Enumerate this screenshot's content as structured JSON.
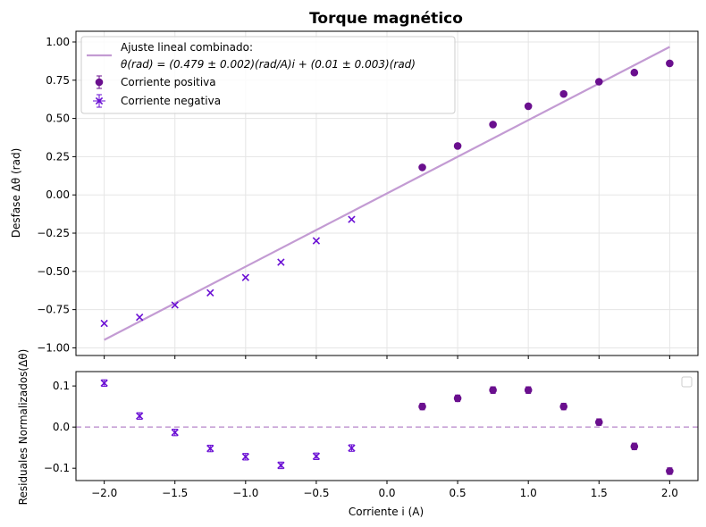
{
  "chart_data": [
    {
      "type": "scatter",
      "title": "Torque magnético",
      "xlabel": "",
      "ylabel": "Desfase Δθ (rad)",
      "xlim": [
        -2.2,
        2.2
      ],
      "ylim": [
        -1.05,
        1.07
      ],
      "xticks": [
        -2.0,
        -1.5,
        -1.0,
        -0.5,
        0.0,
        0.5,
        1.0,
        1.5,
        2.0
      ],
      "yticks": [
        -1.0,
        -0.75,
        -0.5,
        -0.25,
        0.0,
        0.25,
        0.5,
        0.75,
        1.0
      ],
      "xtick_labels": [
        "",
        "",
        "",
        "",
        "",
        "",
        "",
        "",
        ""
      ],
      "ytick_labels": [
        "−1.00",
        "−0.75",
        "−0.50",
        "−0.25",
        "0.00",
        "0.25",
        "0.50",
        "0.75",
        "1.00"
      ],
      "grid": true,
      "legend_position": "top-left",
      "fit_line": {
        "label_line1": "Ajuste lineal combinado:",
        "label_line2": "θ(rad) = (0.479 ± 0.002)(rad/A)i + (0.01 ± 0.003)(rad)",
        "slope": 0.479,
        "intercept": 0.01,
        "x_range": [
          -2.0,
          2.0
        ],
        "color": "#c39bd3"
      },
      "series": [
        {
          "name": "Corriente positiva",
          "marker": "circle",
          "color": "#6a0f8e",
          "x": [
            0.25,
            0.5,
            0.75,
            1.0,
            1.25,
            1.5,
            1.75,
            2.0
          ],
          "y": [
            0.18,
            0.32,
            0.46,
            0.58,
            0.66,
            0.74,
            0.8,
            0.86
          ]
        },
        {
          "name": "Corriente negativa",
          "marker": "x",
          "color": "#6a0fd4",
          "x": [
            -2.0,
            -1.75,
            -1.5,
            -1.25,
            -1.0,
            -0.75,
            -0.5,
            -0.25
          ],
          "y": [
            -0.84,
            -0.8,
            -0.72,
            -0.64,
            -0.54,
            -0.44,
            -0.3,
            -0.16
          ]
        }
      ]
    },
    {
      "type": "scatter",
      "title": "",
      "xlabel": "Corriente i (A)",
      "ylabel": "Residuales Normalizados(Δθ)",
      "xlim": [
        -2.2,
        2.2
      ],
      "ylim": [
        -0.13,
        0.135
      ],
      "xticks": [
        -2.0,
        -1.5,
        -1.0,
        -0.5,
        0.0,
        0.5,
        1.0,
        1.5,
        2.0
      ],
      "yticks": [
        -0.1,
        0.0,
        0.1
      ],
      "xtick_labels": [
        "−2.0",
        "−1.5",
        "−1.0",
        "−0.5",
        "0.0",
        "0.5",
        "1.0",
        "1.5",
        "2.0"
      ],
      "ytick_labels": [
        "−0.1",
        "0.0",
        "0.1"
      ],
      "grid": false,
      "legend_position": "top-right",
      "zero_line": {
        "y": 0.0,
        "style": "dashed",
        "color": "#c39bd3"
      },
      "series": [
        {
          "marker": "circle",
          "color": "#6a0f8e",
          "x": [
            0.25,
            0.5,
            0.75,
            1.0,
            1.25,
            1.5,
            1.75,
            2.0
          ],
          "y": [
            0.05,
            0.07,
            0.09,
            0.09,
            0.05,
            0.012,
            -0.047,
            -0.107
          ],
          "yerr": 0.008
        },
        {
          "marker": "x",
          "color": "#6a0fd4",
          "x": [
            -2.0,
            -1.75,
            -1.5,
            -1.25,
            -1.0,
            -0.75,
            -0.5,
            -0.25
          ],
          "y": [
            0.107,
            0.027,
            -0.013,
            -0.052,
            -0.072,
            -0.093,
            -0.071,
            -0.051
          ],
          "yerr": 0.008
        }
      ]
    }
  ]
}
